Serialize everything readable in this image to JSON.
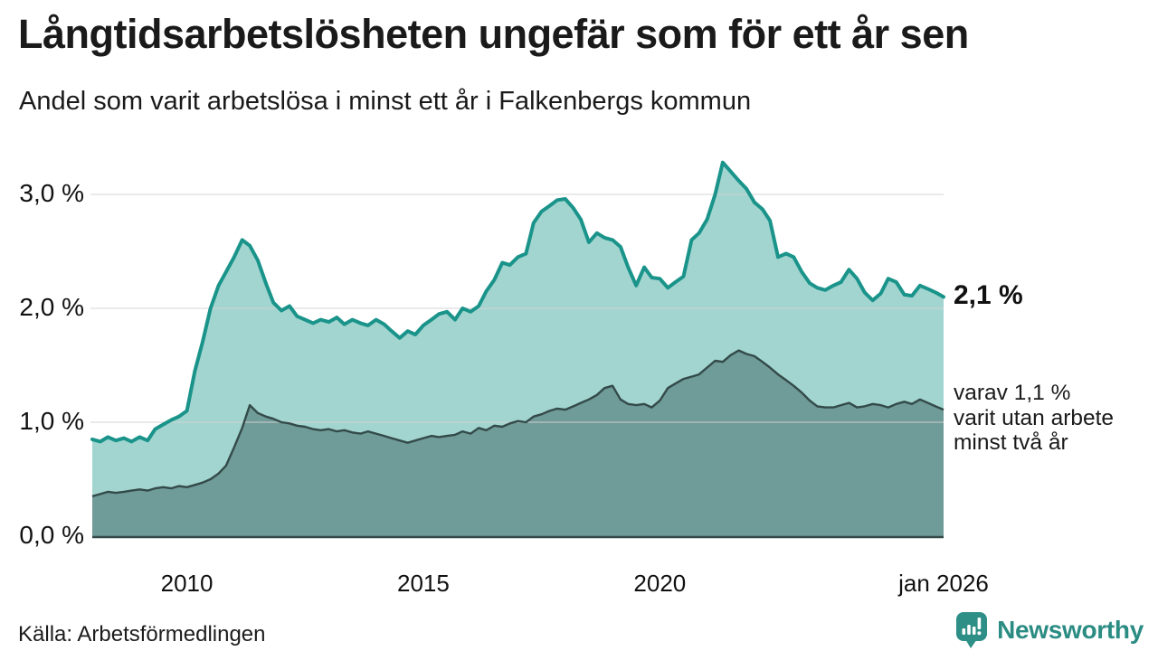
{
  "header": {
    "title": "Långtidsarbetslösheten ungefär som för ett år sen",
    "subtitle": "Andel som varit arbetslösa i minst ett år i Falkenbergs kommun"
  },
  "annotations": {
    "latest_total": "2,1 %",
    "two_year_line1": "varav 1,1 %",
    "two_year_line2": "varit utan arbete",
    "two_year_line3": "minst två år"
  },
  "footer": {
    "source": "Källa: Arbetsförmedlingen",
    "brand": "Newsworthy"
  },
  "colors": {
    "total_line": "#1a948a",
    "total_fill": "#a2d5d0",
    "two_year_line": "#334a49",
    "two_year_fill": "#6f9b98",
    "gridline": "#d2d2d2",
    "baseline": "#334a49",
    "brand_teal": "#2e8f86",
    "text": "#1a1a1a"
  },
  "chart_data": {
    "type": "area",
    "title": "Långtidsarbetslösheten ungefär som för ett år sen",
    "subtitle": "Andel som varit arbetslösa i minst ett år i Falkenbergs kommun",
    "unit": "%",
    "x_range": [
      2008,
      2026.0
    ],
    "ylim": [
      0,
      3.4
    ],
    "grid": true,
    "y_ticks": [
      {
        "label": "0,0 %",
        "value": 0
      },
      {
        "label": "1,0 %",
        "value": 1
      },
      {
        "label": "2,0 %",
        "value": 2
      },
      {
        "label": "3,0 %",
        "value": 3
      }
    ],
    "x_ticks": [
      {
        "label": "2010",
        "year": 2010
      },
      {
        "label": "2015",
        "year": 2015
      },
      {
        "label": "2020",
        "year": 2020
      },
      {
        "label": "jan 2026",
        "year": 2026
      }
    ],
    "x": [
      2008,
      2008.17,
      2008.33,
      2008.5,
      2008.67,
      2008.83,
      2009,
      2009.17,
      2009.33,
      2009.5,
      2009.67,
      2009.83,
      2010,
      2010.17,
      2010.33,
      2010.5,
      2010.67,
      2010.83,
      2011,
      2011.17,
      2011.33,
      2011.5,
      2011.67,
      2011.83,
      2012,
      2012.17,
      2012.33,
      2012.5,
      2012.67,
      2012.83,
      2013,
      2013.17,
      2013.33,
      2013.5,
      2013.67,
      2013.83,
      2014,
      2014.17,
      2014.33,
      2014.5,
      2014.67,
      2014.83,
      2015,
      2015.17,
      2015.33,
      2015.5,
      2015.67,
      2015.83,
      2016,
      2016.17,
      2016.33,
      2016.5,
      2016.67,
      2016.83,
      2017,
      2017.17,
      2017.33,
      2017.5,
      2017.67,
      2017.83,
      2018,
      2018.17,
      2018.33,
      2018.5,
      2018.67,
      2018.83,
      2019,
      2019.17,
      2019.33,
      2019.5,
      2019.67,
      2019.83,
      2020,
      2020.17,
      2020.33,
      2020.5,
      2020.67,
      2020.83,
      2021,
      2021.17,
      2021.33,
      2021.5,
      2021.67,
      2021.83,
      2022,
      2022.17,
      2022.33,
      2022.5,
      2022.67,
      2022.83,
      2023,
      2023.17,
      2023.33,
      2023.5,
      2023.67,
      2023.83,
      2024,
      2024.17,
      2024.33,
      2024.5,
      2024.67,
      2024.83,
      2025,
      2025.17,
      2025.33,
      2025.5,
      2025.67,
      2025.83,
      2026
    ],
    "series": [
      {
        "name": "Andel arbetslösa minst ett år",
        "end_label": "2,1 %",
        "line_color": "#1a948a",
        "fill_color": "#a2d5d0",
        "values": [
          0.85,
          0.83,
          0.87,
          0.84,
          0.86,
          0.83,
          0.87,
          0.84,
          0.94,
          0.98,
          1.02,
          1.05,
          1.1,
          1.45,
          1.7,
          2.0,
          2.2,
          2.32,
          2.45,
          2.6,
          2.55,
          2.42,
          2.22,
          2.05,
          1.98,
          2.02,
          1.93,
          1.9,
          1.87,
          1.9,
          1.88,
          1.92,
          1.86,
          1.9,
          1.87,
          1.85,
          1.9,
          1.86,
          1.8,
          1.74,
          1.8,
          1.77,
          1.85,
          1.9,
          1.95,
          1.97,
          1.9,
          2.0,
          1.97,
          2.02,
          2.15,
          2.25,
          2.4,
          2.38,
          2.45,
          2.48,
          2.75,
          2.85,
          2.9,
          2.95,
          2.96,
          2.88,
          2.78,
          2.58,
          2.66,
          2.62,
          2.6,
          2.54,
          2.36,
          2.2,
          2.36,
          2.27,
          2.26,
          2.18,
          2.23,
          2.28,
          2.6,
          2.66,
          2.78,
          3.0,
          3.28,
          3.2,
          3.12,
          3.05,
          2.93,
          2.87,
          2.77,
          2.45,
          2.48,
          2.45,
          2.32,
          2.22,
          2.18,
          2.16,
          2.2,
          2.23,
          2.34,
          2.26,
          2.14,
          2.07,
          2.13,
          2.26,
          2.23,
          2.12,
          2.11,
          2.2,
          2.17,
          2.14,
          2.1
        ]
      },
      {
        "name": "varav utan arbete minst två år",
        "end_label": "varav 1,1 % varit utan arbete minst två år",
        "line_color": "#334a49",
        "fill_color": "#6f9b98",
        "values": [
          0.35,
          0.37,
          0.39,
          0.38,
          0.39,
          0.4,
          0.41,
          0.4,
          0.42,
          0.43,
          0.42,
          0.44,
          0.43,
          0.45,
          0.47,
          0.5,
          0.55,
          0.62,
          0.78,
          0.95,
          1.15,
          1.08,
          1.05,
          1.03,
          1.0,
          0.99,
          0.97,
          0.96,
          0.94,
          0.93,
          0.94,
          0.92,
          0.93,
          0.91,
          0.9,
          0.92,
          0.9,
          0.88,
          0.86,
          0.84,
          0.82,
          0.84,
          0.86,
          0.88,
          0.87,
          0.88,
          0.89,
          0.92,
          0.9,
          0.95,
          0.93,
          0.97,
          0.96,
          0.99,
          1.01,
          1.0,
          1.05,
          1.07,
          1.1,
          1.12,
          1.11,
          1.14,
          1.17,
          1.2,
          1.24,
          1.3,
          1.32,
          1.2,
          1.16,
          1.15,
          1.16,
          1.13,
          1.19,
          1.3,
          1.34,
          1.38,
          1.4,
          1.42,
          1.48,
          1.54,
          1.53,
          1.59,
          1.63,
          1.6,
          1.58,
          1.53,
          1.48,
          1.42,
          1.37,
          1.32,
          1.26,
          1.19,
          1.14,
          1.13,
          1.13,
          1.15,
          1.17,
          1.13,
          1.14,
          1.16,
          1.15,
          1.13,
          1.16,
          1.18,
          1.16,
          1.2,
          1.17,
          1.14,
          1.11
        ]
      }
    ]
  }
}
